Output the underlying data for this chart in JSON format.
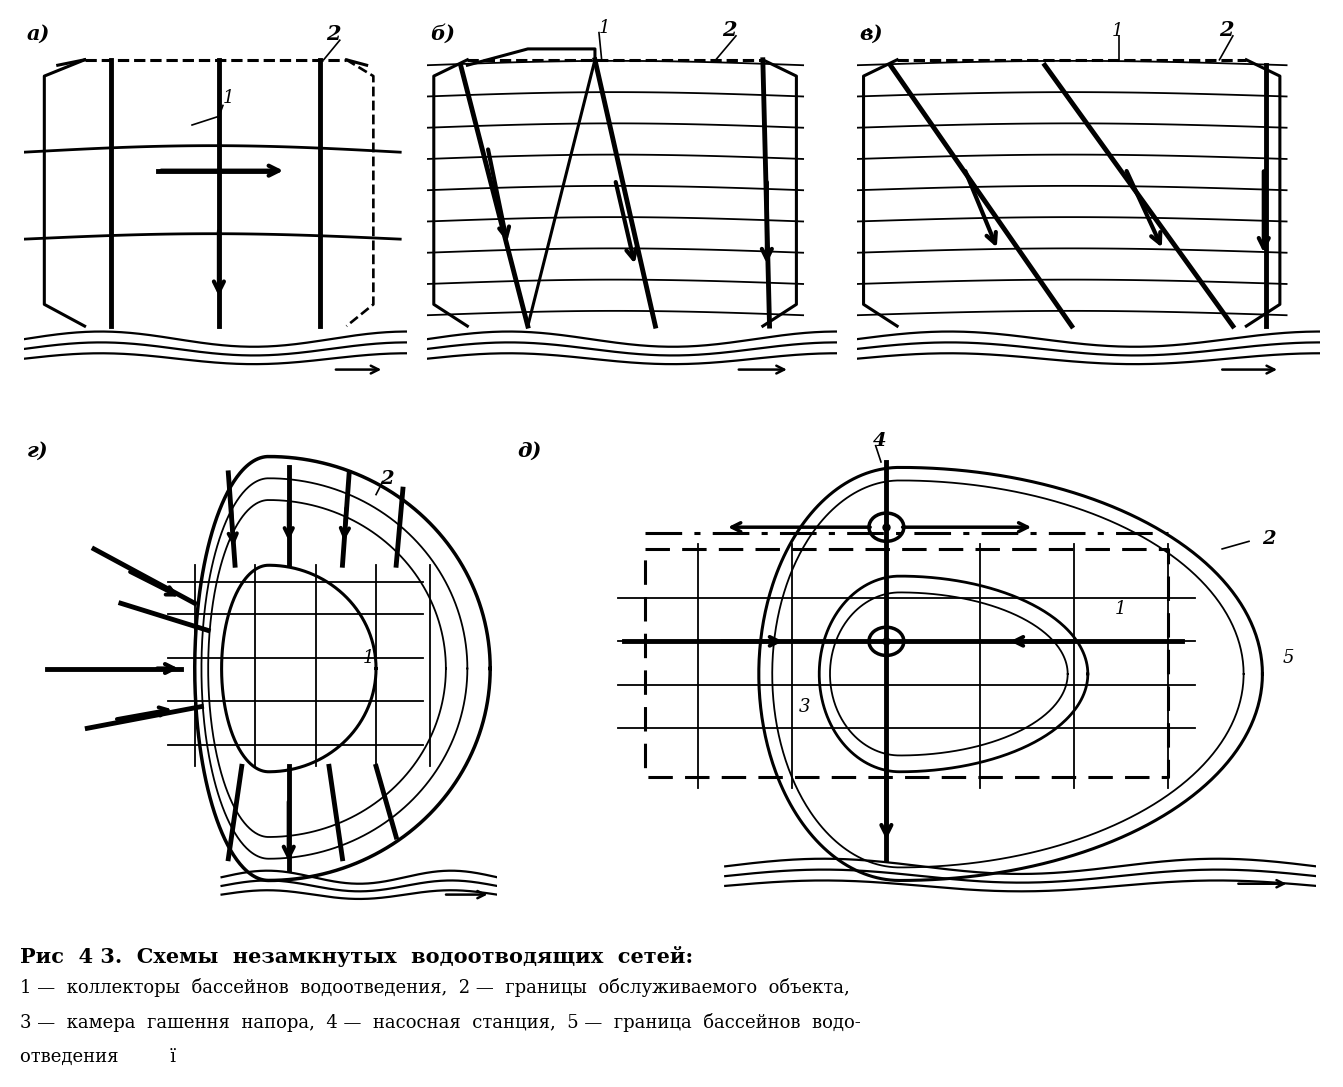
{
  "title": "Рис  4 3.  Схемы  незамкнутых  водоотводящих  сетей:",
  "caption_line1": "1 —  коллекторы  бассейнов  водоотведения,  2 —  границы  обслуживаемого  объекта,",
  "caption_line2": "3 —  камера  гашення  напора,  4 —  насосная  станция,  5 —  граница  бассейнов  водо-",
  "caption_line3": "отведения         ї",
  "bg_color": "#ffffff",
  "lw_main": 2.0,
  "lw_thin": 1.3,
  "lw_thick": 3.5,
  "lw_border": 2.2
}
